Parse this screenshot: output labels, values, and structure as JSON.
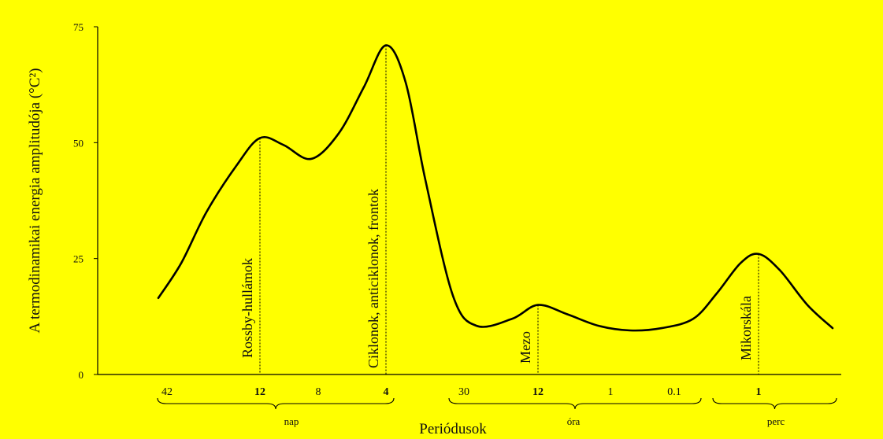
{
  "colors": {
    "background": "#ffff00",
    "curve": "#000000",
    "text": "#111111"
  },
  "chart_data": {
    "type": "line",
    "title": "",
    "ylabel": "A termodinamikai energia amplitudója (°C²)",
    "xlabel": "Periódusok",
    "ylim": [
      0,
      75
    ],
    "y_ticks": [
      "0",
      "25",
      "50",
      "75"
    ],
    "x_ticks": [
      "42",
      "12",
      "8",
      "4",
      "30",
      "12",
      "1",
      "0.1",
      "1"
    ],
    "unit_groups": [
      "nap",
      "óra",
      "perc"
    ],
    "series": [
      {
        "values": [
          16.5,
          24,
          35,
          45,
          51,
          49.5,
          46.5,
          52,
          62,
          71,
          63,
          42,
          17,
          10.5,
          12,
          15,
          13,
          10.5,
          9.5,
          10,
          12,
          17.5,
          24,
          26,
          22.5,
          15,
          10
        ]
      }
    ],
    "annotations": [
      {
        "label": "Rossby-hullámok",
        "peak_value": 51
      },
      {
        "label": "Ciklonok, anticiklonok, frontok",
        "peak_value": 71
      },
      {
        "label": "Mezo",
        "peak_value": 15
      },
      {
        "label": "Mikorskála",
        "peak_value": 26
      }
    ]
  }
}
